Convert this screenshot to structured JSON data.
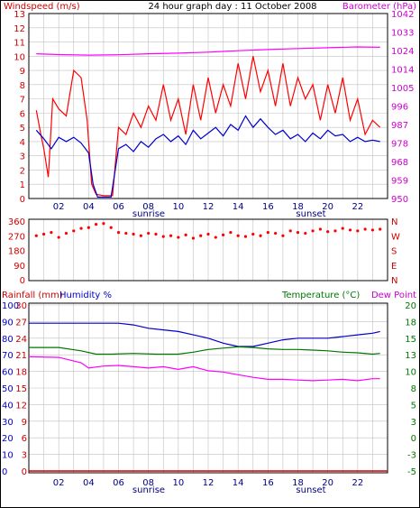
{
  "colors": {
    "windspeed": "#ff0000",
    "gust": "#ee0000",
    "average": "#0000cc",
    "barometer": "#ff00ff",
    "direction": "#ff0000",
    "rainfall": "#cc0000",
    "humidity": "#0000cc",
    "temperature": "#007700",
    "dewpoint": "#ff00ff",
    "grid": "#c0c0c0",
    "tick_x": "#000080"
  },
  "header": {
    "windspeed_label": "Windspeed (m/s)",
    "title": "24 hour graph day : 11 October 2008",
    "barometer_label": "Barometer (hPa)"
  },
  "x_axis": {
    "tick_labels": [
      "02",
      "04",
      "06",
      "08",
      "10",
      "12",
      "14",
      "16",
      "18",
      "20",
      "22"
    ],
    "sunrise": "sunrise",
    "sunset": "sunset"
  },
  "wind_panel": {
    "left_ticks": [
      "0",
      "1",
      "2",
      "3",
      "4",
      "5",
      "6",
      "7",
      "8",
      "9",
      "10",
      "11",
      "12",
      "13"
    ],
    "right_ticks": [
      "950",
      "959",
      "968",
      "978",
      "987",
      "996",
      "1005",
      "1014",
      "1024",
      "1033",
      "1042"
    ]
  },
  "direction_panel": {
    "left_ticks": [
      "0",
      "90",
      "180",
      "270",
      "360"
    ],
    "right_ticks": [
      "N",
      "E",
      "S",
      "W",
      "N"
    ]
  },
  "weather_panel": {
    "rainfall_label": "Rainfall (mm)",
    "humidity_label": "Humidity %",
    "temperature_label": "Temperature (°C)",
    "dewpoint_label": "Dew Point",
    "rain_ticks": [
      "0",
      "3",
      "6",
      "9",
      "12",
      "15",
      "18",
      "21",
      "24",
      "27",
      "30"
    ],
    "humidity_ticks": [
      "0",
      "10",
      "20",
      "30",
      "40",
      "50",
      "60",
      "70",
      "80",
      "90",
      "100"
    ],
    "temp_ticks": [
      "-5",
      "-3",
      "0",
      "3",
      "5",
      "8",
      "10",
      "13",
      "15",
      "18",
      "20"
    ]
  },
  "chart_data": [
    {
      "type": "line",
      "title": "24 hour graph day : 11 October 2008",
      "xlabel": "",
      "x_range_hours": [
        0,
        24
      ],
      "grid": true,
      "y_left": {
        "label": "Windspeed (m/s)",
        "range": [
          0,
          13
        ]
      },
      "y_right": {
        "label": "Barometer (hPa)",
        "range": [
          950,
          1042
        ]
      },
      "series": [
        {
          "role": "windspeed",
          "axis": "left",
          "x": [
            0.5,
            0.8,
            1.0,
            1.3,
            1.6,
            2.0,
            2.5,
            3.0,
            3.5,
            3.9,
            4.2,
            4.5,
            5.0,
            5.3,
            5.6,
            6.0,
            6.5,
            7.0,
            7.5,
            8.0,
            8.5,
            9.0,
            9.5,
            10.0,
            10.5,
            11.0,
            11.5,
            12.0,
            12.5,
            13.0,
            13.5,
            14.0,
            14.5,
            15.0,
            15.5,
            16.0,
            16.5,
            17.0,
            17.5,
            18.0,
            18.5,
            19.0,
            19.5,
            20.0,
            20.5,
            21.0,
            21.5,
            22.0,
            22.5,
            23.0,
            23.5
          ],
          "y": [
            6.2,
            4.5,
            3.5,
            1.5,
            7.0,
            6.3,
            5.8,
            9.0,
            8.5,
            5.5,
            1.0,
            0.3,
            0.2,
            0.2,
            0.2,
            5.0,
            4.5,
            6.0,
            5.0,
            6.5,
            5.5,
            8.0,
            5.5,
            7.0,
            4.5,
            8.0,
            5.5,
            8.5,
            6.0,
            8.0,
            6.5,
            9.5,
            7.0,
            10.0,
            7.5,
            9.0,
            6.5,
            9.5,
            6.5,
            8.5,
            7.0,
            8.0,
            5.5,
            8.0,
            6.0,
            8.5,
            5.5,
            7.0,
            4.5,
            5.5,
            5.0
          ]
        },
        {
          "role": "average_windspeed",
          "axis": "left",
          "x": [
            0.5,
            1.0,
            1.5,
            2.0,
            2.5,
            3.0,
            3.5,
            4.0,
            4.3,
            4.6,
            5.0,
            5.5,
            6.0,
            6.5,
            7.0,
            7.5,
            8.0,
            8.5,
            9.0,
            9.5,
            10.0,
            10.5,
            11.0,
            11.5,
            12.0,
            12.5,
            13.0,
            13.5,
            14.0,
            14.5,
            15.0,
            15.5,
            16.0,
            16.5,
            17.0,
            17.5,
            18.0,
            18.5,
            19.0,
            19.5,
            20.0,
            20.5,
            21.0,
            21.5,
            22.0,
            22.5,
            23.0,
            23.5
          ],
          "y": [
            4.8,
            4.2,
            3.5,
            4.3,
            4.0,
            4.3,
            3.9,
            3.2,
            1.0,
            0.1,
            0.1,
            0.1,
            3.5,
            3.8,
            3.3,
            4.0,
            3.6,
            4.2,
            4.5,
            4.0,
            4.4,
            3.8,
            4.8,
            4.2,
            4.6,
            5.0,
            4.4,
            5.2,
            4.8,
            5.8,
            5.0,
            5.6,
            5.0,
            4.5,
            4.8,
            4.2,
            4.5,
            4.0,
            4.6,
            4.2,
            4.8,
            4.4,
            4.5,
            4.0,
            4.3,
            4.0,
            4.1,
            4.0
          ]
        },
        {
          "role": "barometer",
          "axis": "right",
          "x": [
            0.5,
            2.0,
            4.0,
            6.0,
            8.0,
            10.0,
            12.0,
            14.0,
            16.0,
            18.0,
            20.0,
            22.0,
            23.5
          ],
          "y": [
            1022,
            1021.6,
            1021.3,
            1021.5,
            1022,
            1022.3,
            1022.8,
            1023.5,
            1024.1,
            1024.6,
            1025,
            1025.4,
            1025.2
          ]
        }
      ]
    },
    {
      "type": "scatter",
      "title": "",
      "x_range_hours": [
        0,
        24
      ],
      "grid": true,
      "y_left": {
        "label": "",
        "range": [
          0,
          360
        ]
      },
      "series": [
        {
          "role": "wind_direction",
          "axis": "left",
          "x": [
            0.5,
            1.0,
            1.5,
            2.0,
            2.5,
            3.0,
            3.5,
            4.0,
            4.5,
            5.0,
            5.5,
            6.0,
            6.5,
            7.0,
            7.5,
            8.0,
            8.5,
            9.0,
            9.5,
            10.0,
            10.5,
            11.0,
            11.5,
            12.0,
            12.5,
            13.0,
            13.5,
            14.0,
            14.5,
            15.0,
            15.5,
            16.0,
            16.5,
            17.0,
            17.5,
            18.0,
            18.5,
            19.0,
            19.5,
            20.0,
            20.5,
            21.0,
            21.5,
            22.0,
            22.5,
            23.0,
            23.5
          ],
          "y": [
            270,
            280,
            290,
            260,
            285,
            300,
            315,
            320,
            340,
            345,
            320,
            290,
            285,
            280,
            270,
            285,
            280,
            265,
            270,
            260,
            275,
            255,
            270,
            280,
            260,
            275,
            290,
            270,
            265,
            280,
            270,
            290,
            285,
            270,
            300,
            290,
            285,
            300,
            310,
            295,
            300,
            315,
            305,
            300,
            310,
            305,
            310
          ]
        }
      ]
    },
    {
      "type": "line",
      "title": "",
      "x_range_hours": [
        0,
        24
      ],
      "grid": true,
      "y_left": {
        "label": "Rainfall (mm)",
        "range": [
          0,
          30
        ]
      },
      "y_left2": {
        "label": "Humidity %",
        "range": [
          0,
          100
        ]
      },
      "y_right": {
        "label": "Temperature (°C)",
        "range": [
          -5,
          20
        ]
      },
      "series": [
        {
          "role": "rainfall",
          "axis": "left",
          "x": [
            0.0,
            24.0
          ],
          "y": [
            0,
            0
          ]
        },
        {
          "role": "humidity",
          "axis": "left2",
          "x": [
            0.0,
            2.0,
            4.0,
            5.0,
            6.0,
            7.0,
            8.0,
            9.0,
            10.0,
            11.0,
            12.0,
            13.0,
            14.0,
            15.0,
            16.0,
            17.0,
            18.0,
            19.0,
            20.0,
            21.0,
            22.0,
            23.0,
            23.5
          ],
          "y": [
            89,
            89,
            89,
            89,
            89,
            88,
            86,
            85,
            84,
            82,
            80,
            77,
            75,
            75,
            77,
            79,
            80,
            80,
            80,
            81,
            82,
            83,
            84
          ]
        },
        {
          "role": "temperature",
          "axis": "right",
          "x": [
            0.0,
            2.0,
            3.5,
            4.5,
            5.5,
            7.0,
            8.5,
            10.0,
            11.0,
            12.0,
            13.0,
            14.0,
            15.0,
            16.0,
            17.0,
            18.0,
            19.0,
            20.0,
            21.0,
            22.0,
            23.0,
            23.5
          ],
          "y": [
            13.6,
            13.6,
            13.1,
            12.6,
            12.6,
            12.7,
            12.6,
            12.6,
            12.9,
            13.3,
            13.5,
            13.7,
            13.6,
            13.4,
            13.3,
            13.3,
            13.2,
            13.1,
            12.9,
            12.8,
            12.6,
            12.7
          ]
        },
        {
          "role": "dewpoint",
          "axis": "right",
          "x": [
            0.0,
            2.0,
            3.5,
            4.0,
            5.0,
            6.0,
            7.0,
            8.0,
            9.0,
            10.0,
            11.0,
            12.0,
            13.0,
            14.0,
            15.0,
            16.0,
            17.0,
            18.0,
            19.0,
            20.0,
            21.0,
            22.0,
            23.0,
            23.5
          ],
          "y": [
            12.2,
            12.1,
            11.3,
            10.5,
            10.8,
            10.9,
            10.7,
            10.5,
            10.7,
            10.3,
            10.7,
            10.1,
            9.9,
            9.5,
            9.1,
            8.8,
            8.8,
            8.7,
            8.6,
            8.7,
            8.8,
            8.6,
            8.9,
            8.9
          ]
        }
      ]
    }
  ]
}
